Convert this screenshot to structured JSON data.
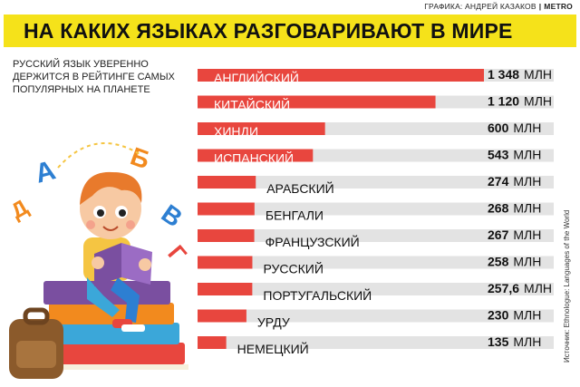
{
  "credit": {
    "text": "ГРАФИКА: АНДРЕЙ КАЗАКОВ",
    "separator": "|",
    "brand": "METRO"
  },
  "subtitle": "РУССКИЙ ЯЗЫК УВЕРЕННО ДЕРЖИТСЯ В РЕЙТИНГЕ САМЫХ ПОПУЛЯРНЫХ НА ПЛАНЕТЕ",
  "source": "Источник: Ethnologue: Languages of the World",
  "illustration": {
    "letters": [
      "А",
      "Б",
      "В",
      "Г",
      "Д"
    ]
  },
  "colors": {
    "title_band": "#f5e21a",
    "bar": "#e8463e",
    "track": "#e3e3e3"
  },
  "chart_data": {
    "type": "bar",
    "orientation": "horizontal",
    "title": "НА КАКИХ ЯЗЫКАХ РАЗГОВАРИВАЮТ В МИРЕ",
    "unit": "МЛН",
    "categories": [
      "АНГЛИЙСКИЙ",
      "КИТАЙСКИЙ",
      "ХИНДИ",
      "ИСПАНСКИЙ",
      "АРАБСКИЙ",
      "БЕНГАЛИ",
      "ФРАНЦУЗСКИЙ",
      "РУССКИЙ",
      "ПОРТУГАЛЬСКИЙ",
      "УРДУ",
      "НЕМЕЦКИЙ"
    ],
    "values": [
      1348,
      1120,
      600,
      543,
      274,
      268,
      267,
      258,
      257.6,
      230,
      135
    ],
    "value_labels": [
      "1 348",
      "1 120",
      "600",
      "543",
      "274",
      "268",
      "267",
      "258",
      "257,6",
      "230",
      "135"
    ],
    "xlim": [
      0,
      1348
    ],
    "grid": false,
    "legend": "none"
  }
}
